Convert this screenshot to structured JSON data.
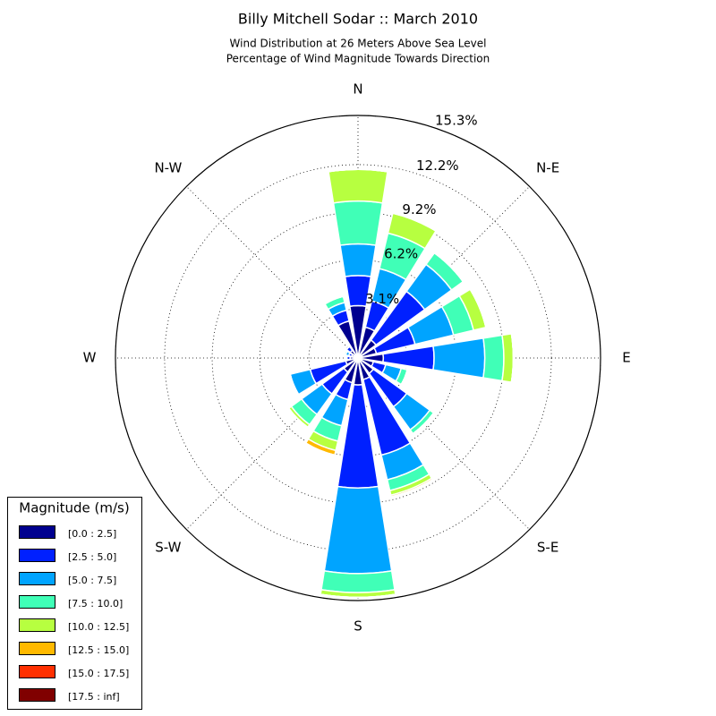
{
  "chart_data": {
    "type": "windrose",
    "title": "Billy Mitchell Sodar :: March 2010",
    "subtitle": [
      "Wind Distribution at 26 Meters Above Sea Level",
      "Percentage of Wind Magnitude Towards Direction"
    ],
    "categories": [
      "N",
      null,
      "N-E",
      null,
      "E",
      null,
      "S-E",
      null,
      "S",
      null,
      "S-W",
      null,
      "W",
      null,
      "N-W",
      null
    ],
    "ylim": [
      0,
      15.3
    ],
    "yticks": [
      {
        "value": 3.1,
        "label": "3.1%"
      },
      {
        "value": 6.2,
        "label": "6.2%"
      },
      {
        "value": 9.2,
        "label": "9.2%"
      },
      {
        "value": 12.2,
        "label": "12.2%"
      },
      {
        "value": 15.3,
        "label": "15.3%"
      }
    ],
    "grid": true,
    "legend_title": "Magnitude (m/s)",
    "legend_position": "lower left",
    "series": [
      {
        "name": "[0.0 : 2.5]",
        "color": "#00008f",
        "values": [
          3.3,
          2.0,
          1.4,
          1.2,
          1.6,
          1.0,
          1.2,
          1.4,
          1.7,
          1.6,
          1.1,
          0.8,
          0.5,
          0.4,
          0.6,
          2.4
        ]
      },
      {
        "name": "[2.5 : 5.0]",
        "color": "#0020ff",
        "values": [
          1.9,
          1.7,
          3.8,
          2.5,
          3.2,
          0.8,
          2.6,
          4.9,
          6.5,
          1.1,
          1.7,
          2.3,
          0.2,
          0.2,
          0.3,
          0.7
        ]
      },
      {
        "name": "[5.0 : 7.5]",
        "color": "#00a4ff",
        "values": [
          2.0,
          2.1,
          2.1,
          2.5,
          3.2,
          1.0,
          1.8,
          1.6,
          5.4,
          1.7,
          1.6,
          1.3,
          0,
          0.2,
          0,
          0.5
        ]
      },
      {
        "name": "[7.5 : 10.0]",
        "color": "#40ffb7",
        "values": [
          2.7,
          2.3,
          0.9,
          1.3,
          1.2,
          0.4,
          0.3,
          0.7,
          1.2,
          1.0,
          0.8,
          0,
          0,
          0.1,
          0,
          0.4
        ]
      },
      {
        "name": "[10.0 : 12.5]",
        "color": "#b7ff40",
        "values": [
          2.0,
          1.3,
          0,
          0.8,
          0.6,
          0,
          0,
          0.3,
          0.3,
          0.6,
          0.2,
          0,
          0,
          0,
          0,
          0
        ]
      },
      {
        "name": "[12.5 : 15.0]",
        "color": "#ffb900",
        "values": [
          0,
          0,
          0,
          0,
          0,
          0,
          0,
          0.1,
          0,
          0.3,
          0,
          0,
          0,
          0,
          0,
          0
        ]
      },
      {
        "name": "[15.0 : 17.5]",
        "color": "#ff3000",
        "values": [
          0,
          0,
          0,
          0,
          0,
          0,
          0,
          0,
          0,
          0,
          0,
          0,
          0,
          0,
          0,
          0
        ]
      },
      {
        "name": "[17.5 : inf]",
        "color": "#800000",
        "values": [
          0,
          0,
          0,
          0,
          0,
          0,
          0,
          0,
          0,
          0,
          0,
          0,
          0,
          0,
          0,
          0
        ]
      }
    ]
  }
}
